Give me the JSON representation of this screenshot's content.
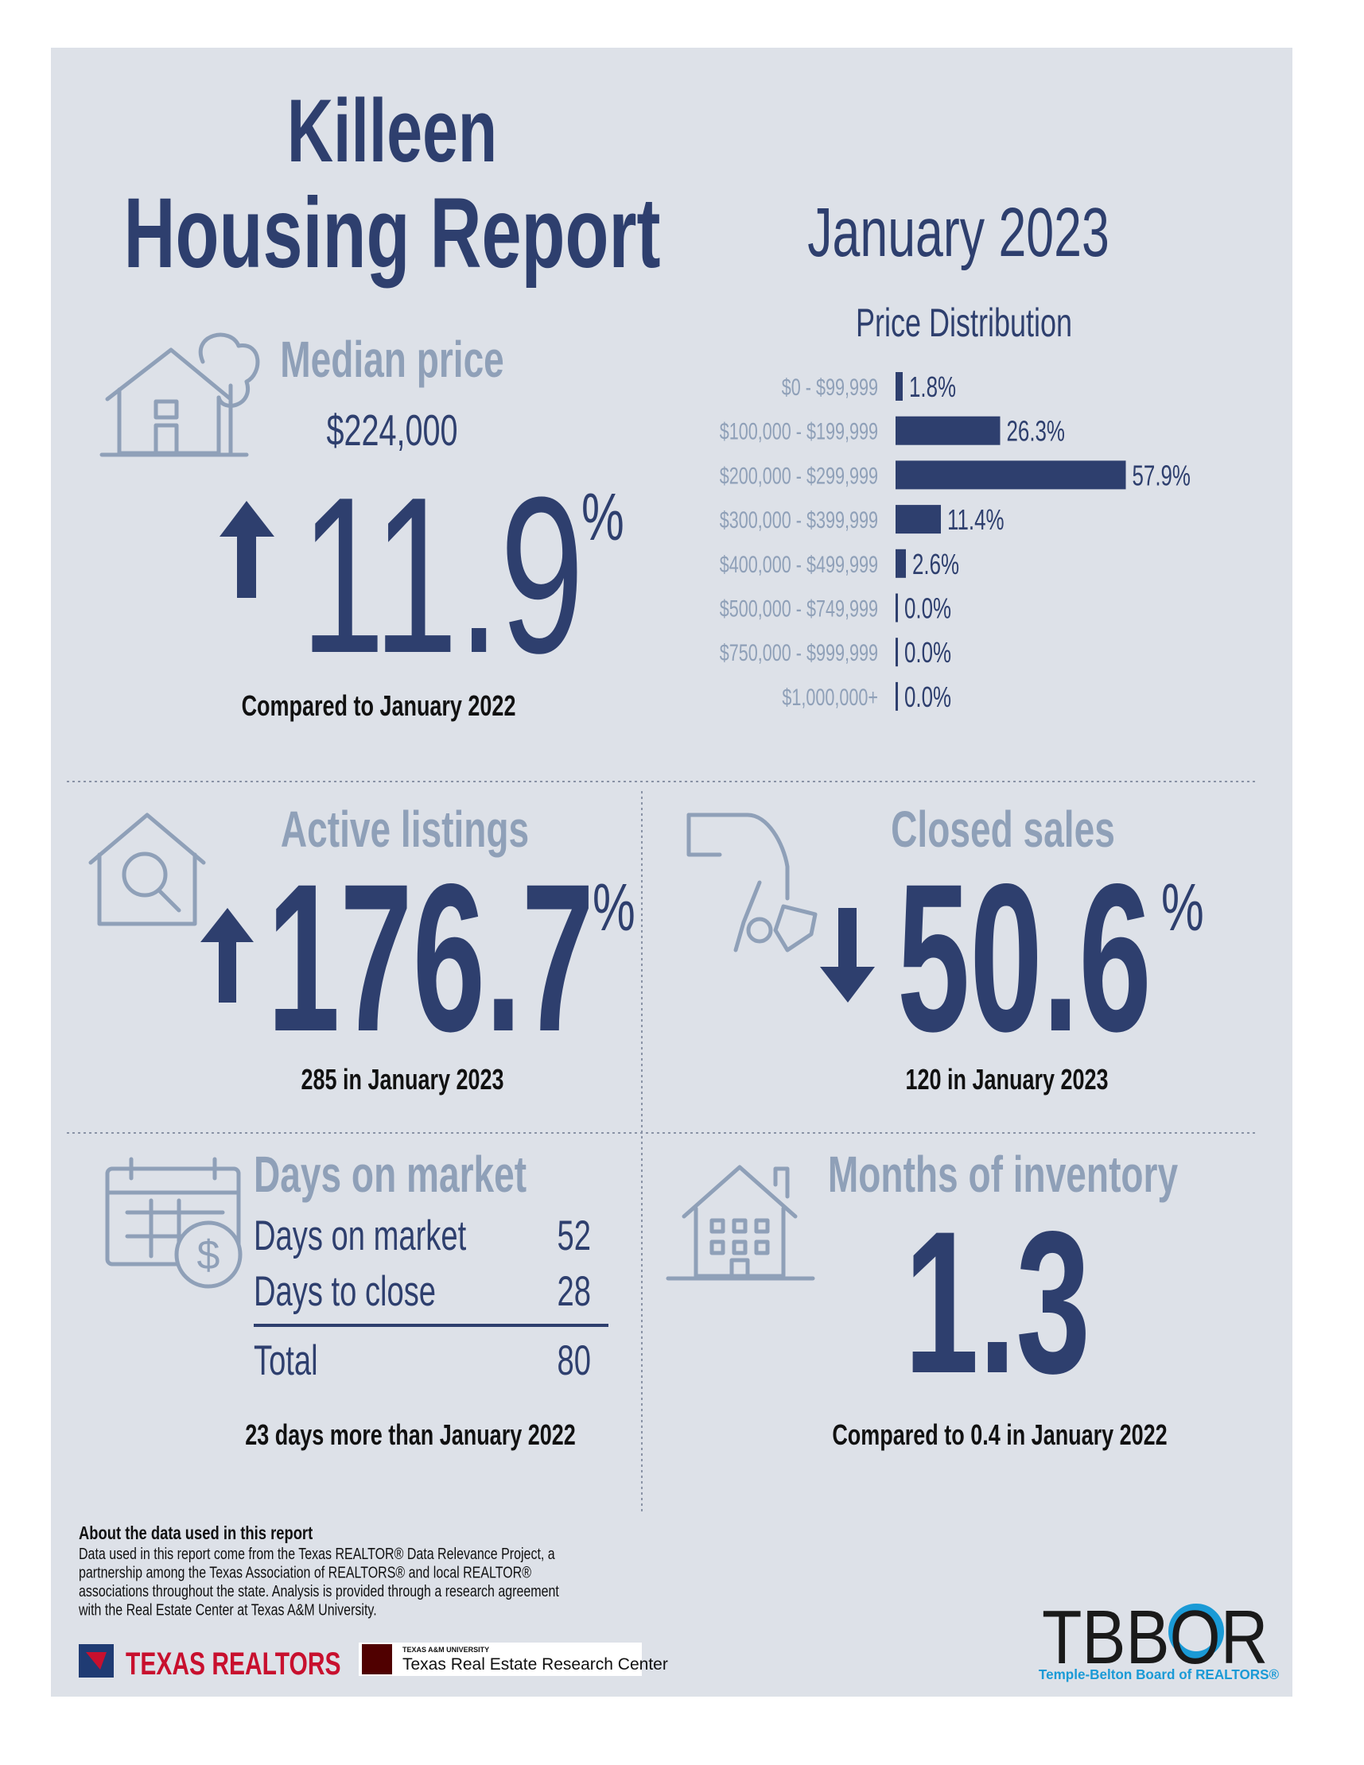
{
  "header": {
    "city": "Killeen",
    "title": "Housing Report",
    "period": "January 2023"
  },
  "median_price": {
    "heading": "Median price",
    "value": "$224,000",
    "change": 11.9,
    "unit": "%",
    "note": "Compared to January 2022"
  },
  "chart_data": {
    "type": "bar",
    "orientation": "horizontal",
    "title": "Price Distribution",
    "categories": [
      "$0 - $99,999",
      "$100,000 - $199,999",
      "$200,000 - $299,999",
      "$300,000 - $399,999",
      "$400,000 - $499,999",
      "$500,000 - $749,999",
      "$750,000 - $999,999",
      "$1,000,000+"
    ],
    "values": [
      1.8,
      26.3,
      57.9,
      11.4,
      2.6,
      0,
      0,
      0
    ],
    "value_labels": [
      "1.8%",
      "26.3%",
      "57.9%",
      "11.4%",
      "2.6%",
      "0.0%",
      "0.0%",
      "0.0%"
    ],
    "color": "#2e3f6e"
  },
  "active_listings": {
    "heading": "Active listings",
    "change": 176.7,
    "unit": "%",
    "note": "285 in January 2023"
  },
  "closed_sales": {
    "heading": "Closed sales",
    "change": 50.6,
    "unit": "%",
    "note": "120 in January 2023"
  },
  "days_on_market": {
    "heading": "Days on market",
    "rows": [
      [
        "Days on market",
        52
      ],
      [
        "Days to close",
        28
      ]
    ],
    "total": [
      "Total",
      80
    ],
    "note": "23 days more than January 2022"
  },
  "months_of_inventory": {
    "heading": "Months of inventory",
    "value": 1.3,
    "note": "Compared to 0.4 in January 2022"
  },
  "about": {
    "heading": "About the data used in this report",
    "lines": [
      "Data used in this report come from the Texas REALTOR® Data Relevance Project, a",
      "partnership among the Texas Association of REALTORS® and local REALTOR®",
      "associations throughout the state. Analysis is provided through a research agreement",
      "with the Real Estate Center at Texas A&M University."
    ]
  },
  "logos": {
    "texas_realtors": "TEXAS REALTORS",
    "tamu_small": "TEXAS A&M UNIVERSITY",
    "tamu": "Texas Real Estate Research Center",
    "tbbor": "TBBOR",
    "tbbor_full": "Temple-Belton Board of REALTORS®"
  }
}
